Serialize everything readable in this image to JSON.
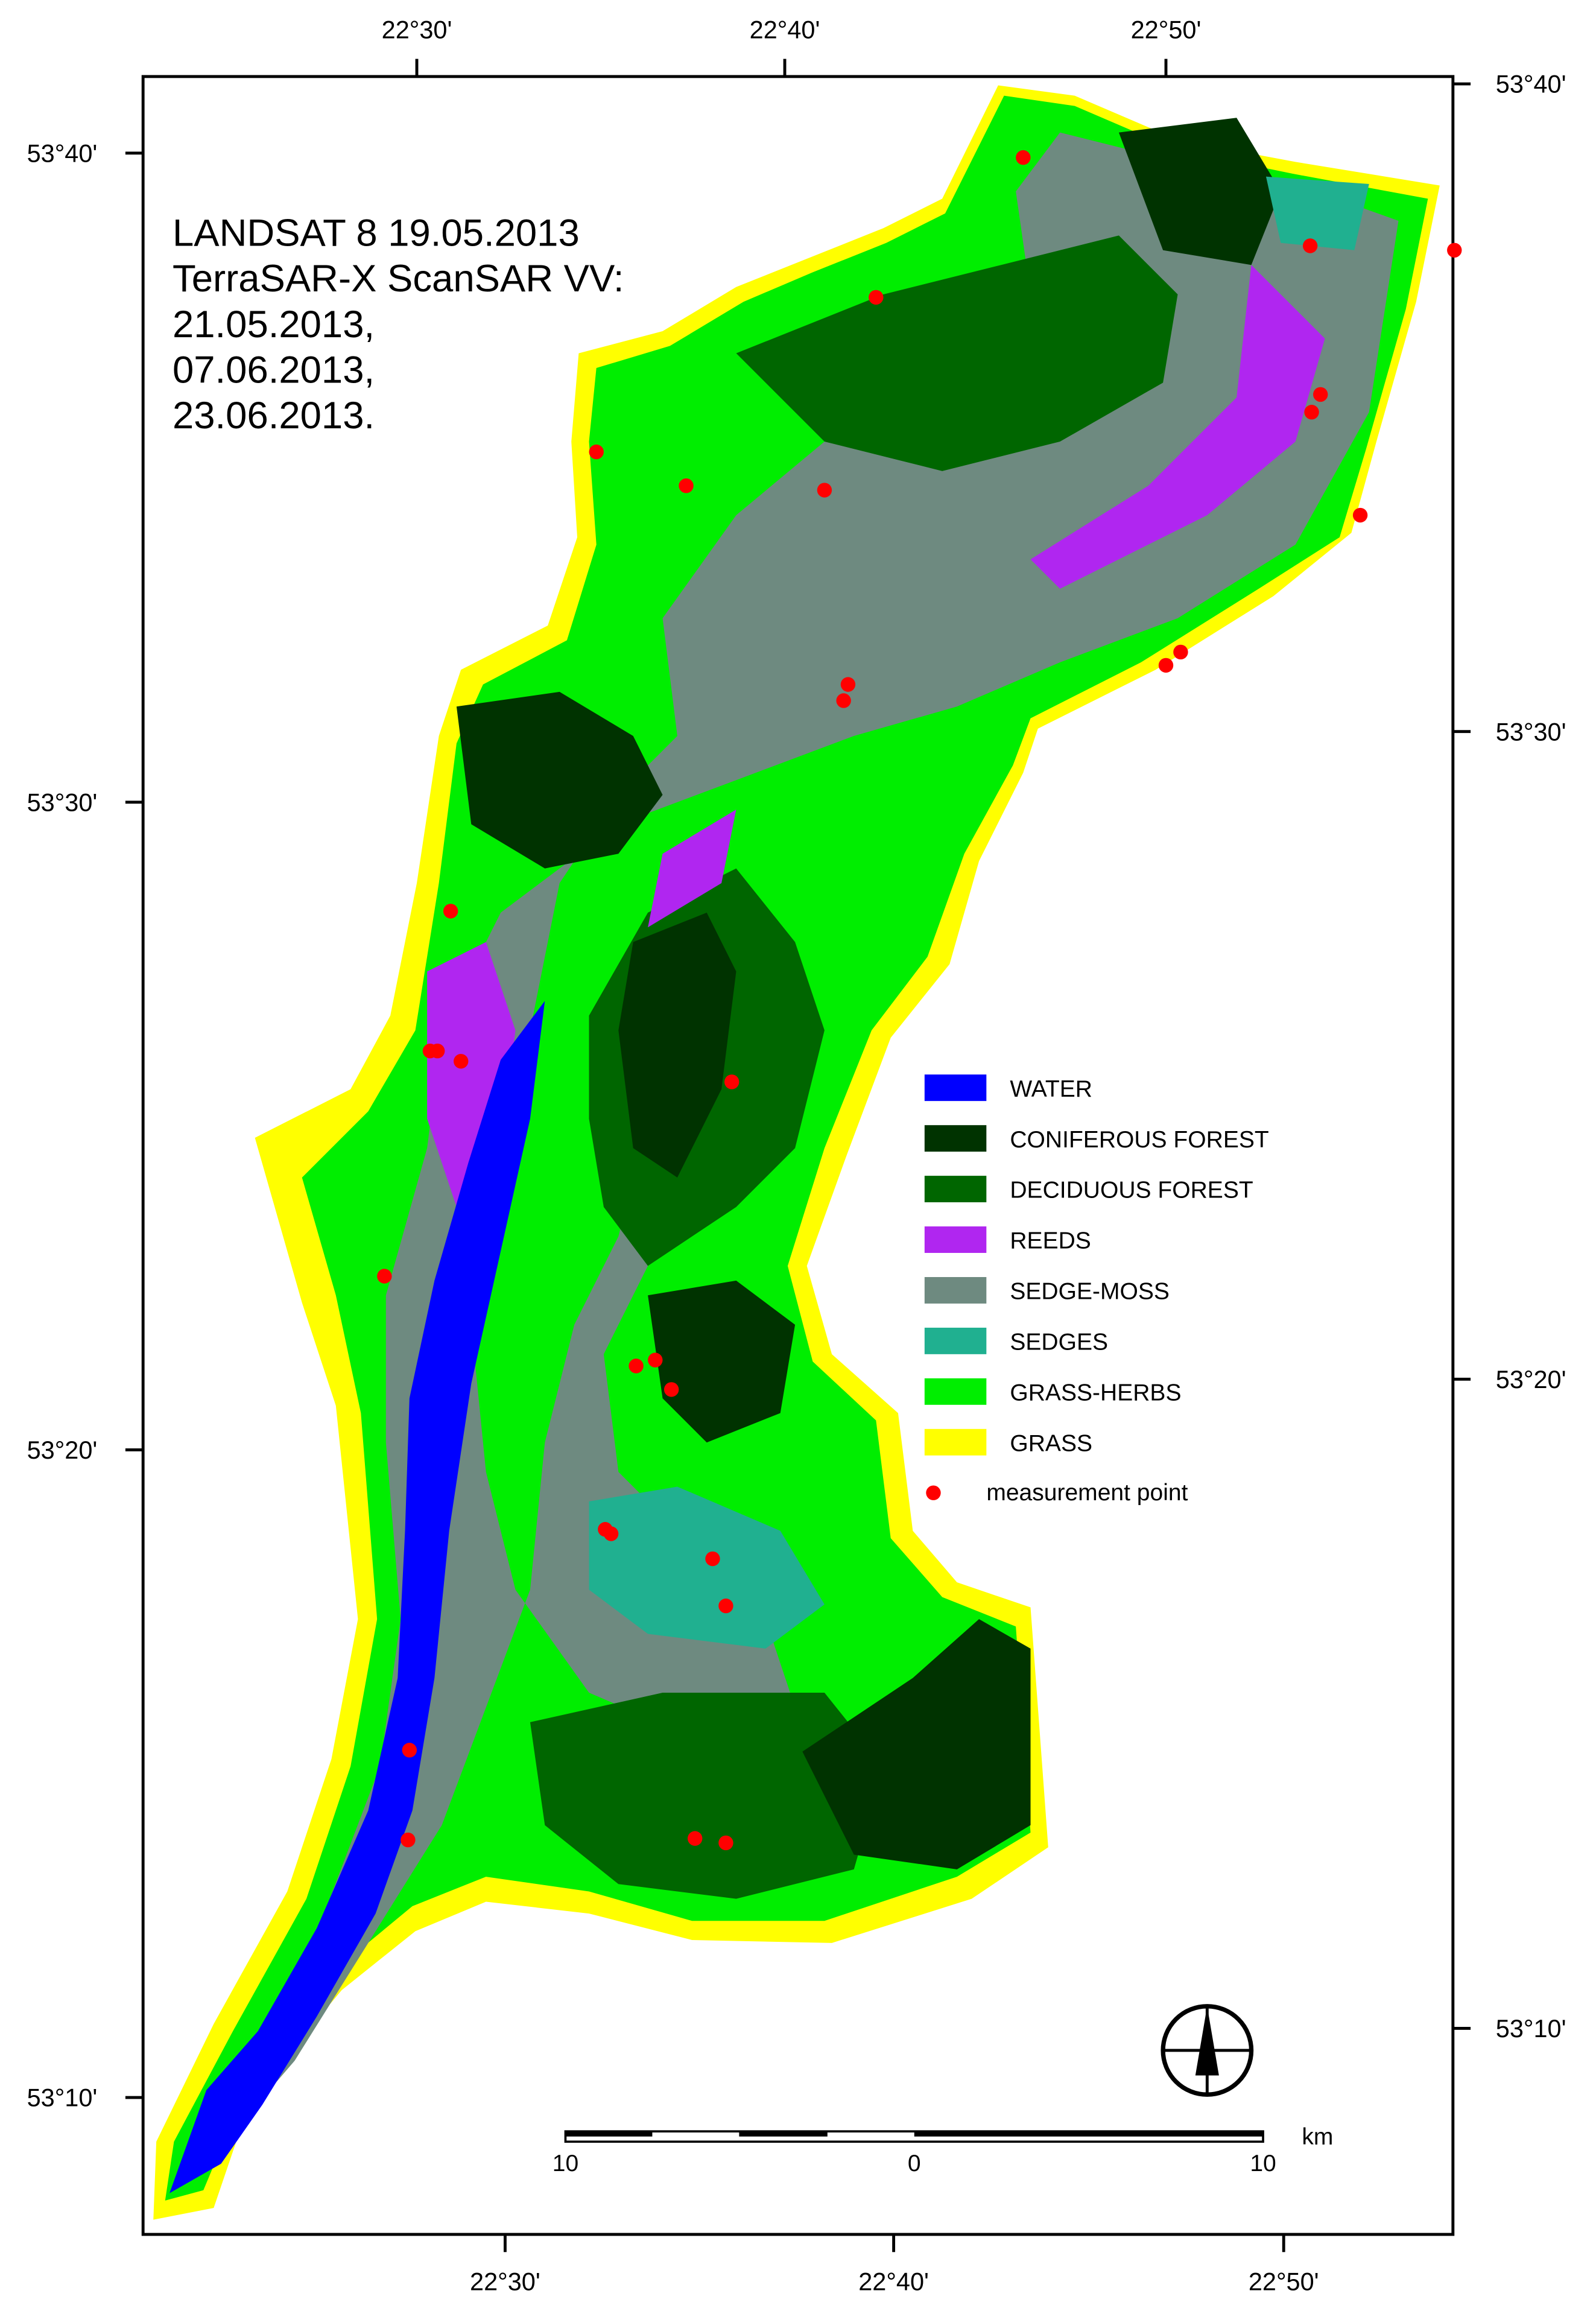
{
  "title_lines": [
    "LANDSAT 8 19.05.2013",
    "TerraSAR-X ScanSAR VV:",
    "21.05.2013,",
    "07.06.2013,",
    "23.06.2013."
  ],
  "legend": [
    {
      "label": "WATER",
      "color": "#0000ff"
    },
    {
      "label": "CONIFEROUS FOREST",
      "color": "#003300"
    },
    {
      "label": "DECIDUOUS FOREST",
      "color": "#006600"
    },
    {
      "label": "REEDS",
      "color": "#b026f0"
    },
    {
      "label": "SEDGE-MOSS",
      "color": "#6e8a80"
    },
    {
      "label": "SEDGES",
      "color": "#20b090"
    },
    {
      "label": "GRASS-HERBS",
      "color": "#00ee00"
    },
    {
      "label": "GRASS",
      "color": "#ffff00"
    },
    {
      "label": "measurement point",
      "color": "#ff0000"
    }
  ],
  "top_labels": [
    "22°30'",
    "22°40'",
    "22°50'"
  ],
  "bottom_labels": [
    "22°30'",
    "22°40'",
    "22°50'"
  ],
  "left_labels": [
    "53°40'",
    "53°30'",
    "53°20'",
    "53°10'"
  ],
  "right_labels": [
    "53°40'",
    "53°30'",
    "53°20'",
    "53°10'"
  ],
  "scale_bar": {
    "labels": [
      "10",
      "0",
      "10"
    ],
    "unit": "km"
  }
}
